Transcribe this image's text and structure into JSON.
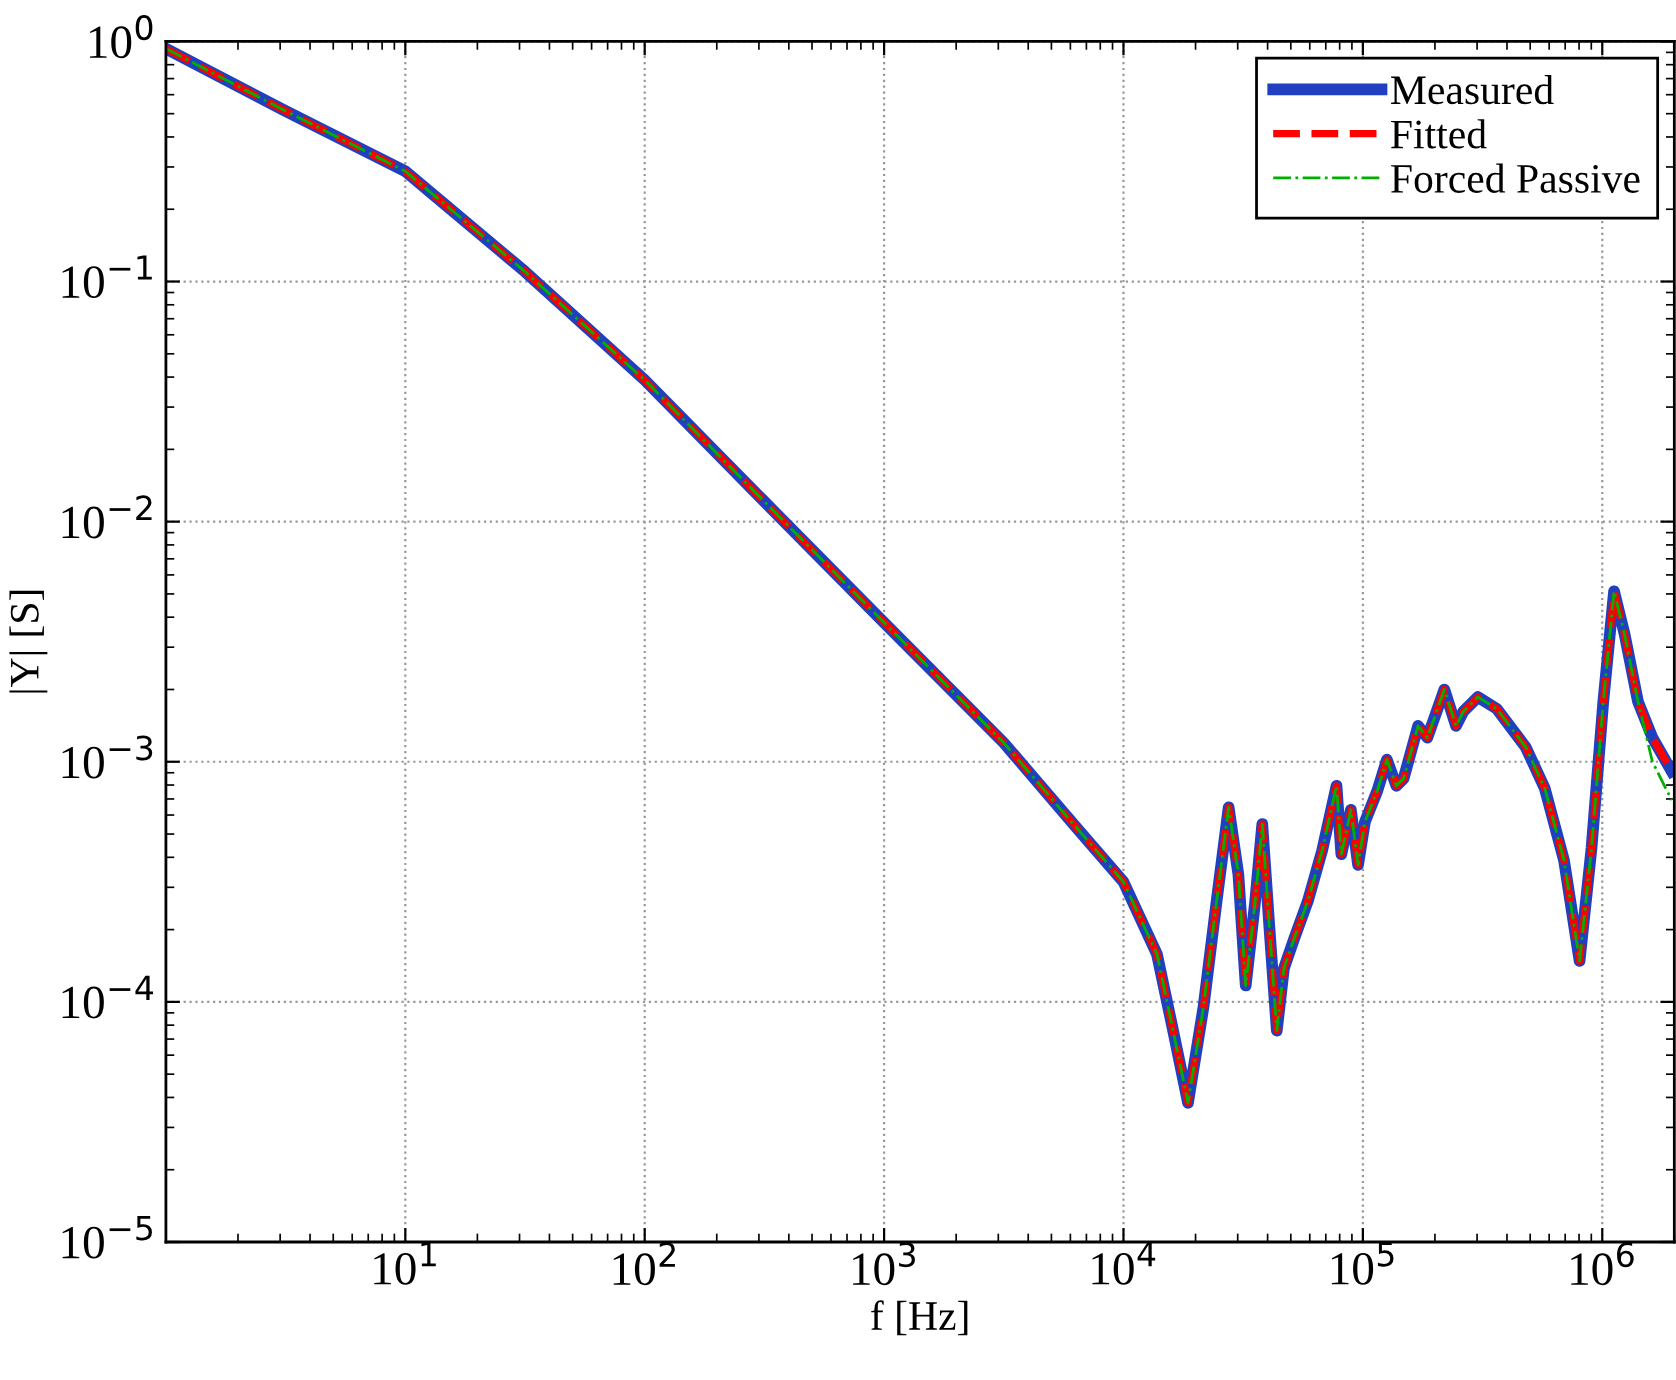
{
  "chart_data": {
    "type": "line",
    "xlabel": "f [Hz]",
    "ylabel": "|Y| [S]",
    "log": "xy",
    "grid": true,
    "legend": "top right",
    "xlim": [
      1,
      2000000
    ],
    "ylim": [
      1e-05,
      1
    ],
    "xticks": [
      {
        "value": 10,
        "label": "10$^{1}$"
      },
      {
        "value": 100,
        "label": "10$^{2}$"
      },
      {
        "value": 1000,
        "label": "10$^{3}$"
      },
      {
        "value": 10000,
        "label": "10$^{4}$"
      },
      {
        "value": 100000,
        "label": "10$^{5}$"
      },
      {
        "value": 1000000,
        "label": "10$^{6}$"
      }
    ],
    "yticks": [
      {
        "value": 1e-05,
        "label": "10$^{−5}$"
      },
      {
        "value": 0.0001,
        "label": "10$^{−4}$"
      },
      {
        "value": 0.001,
        "label": "10$^{−3}$"
      },
      {
        "value": 0.01,
        "label": "10$^{−2}$"
      },
      {
        "value": 0.1,
        "label": "10$^{−1}$"
      },
      {
        "value": 1,
        "label": "10$^{0}$"
      }
    ],
    "x": [
      1,
      3.16,
      10,
      31.6,
      100,
      309,
      1000,
      3160,
      6310,
      10000,
      13800,
      16200,
      18600,
      21600,
      24500,
      27500,
      30200,
      32400,
      35500,
      38000,
      40700,
      43700,
      46800,
      51300,
      58900,
      67600,
      77600,
      81300,
      89100,
      95500,
      102000,
      115000,
      126000,
      138000,
      148000,
      170000,
      186000,
      219000,
      245000,
      263000,
      302000,
      363000,
      479000,
      575000,
      692000,
      804000,
      902000,
      1010000,
      1120000,
      1240000,
      1410000,
      1620000,
      1950000
    ],
    "series": [
      {
        "name": "Measured",
        "color": "#2040c0",
        "line_style": "solid",
        "values": [
          0.933,
          0.513,
          0.288,
          0.11,
          0.0389,
          0.0124,
          0.0038,
          0.0012,
          0.000537,
          0.000316,
          0.000158,
          7.41e-05,
          3.8e-05,
          9.55e-05,
          0.000263,
          0.000646,
          0.000339,
          0.000117,
          0.000263,
          0.00055,
          0.000204,
          7.59e-05,
          0.000138,
          0.00018,
          0.000263,
          0.000427,
          0.000794,
          0.000412,
          0.000631,
          0.000372,
          0.000562,
          0.000759,
          0.00102,
          0.000794,
          0.000851,
          0.00141,
          0.00126,
          0.002,
          0.00141,
          0.00162,
          0.00186,
          0.00166,
          0.00115,
          0.000776,
          0.000389,
          0.000148,
          0.000437,
          0.00178,
          0.00513,
          0.00339,
          0.00178,
          0.00126,
          0.000912
        ]
      },
      {
        "name": "Fitted",
        "color": "#ff0000",
        "line_style": "dashed",
        "values": [
          0.933,
          0.513,
          0.288,
          0.11,
          0.0389,
          0.0124,
          0.0038,
          0.0012,
          0.000537,
          0.000316,
          0.000158,
          7.41e-05,
          3.8e-05,
          9.55e-05,
          0.000263,
          0.000646,
          0.000339,
          0.000117,
          0.000263,
          0.00055,
          0.000204,
          7.59e-05,
          0.000138,
          0.00018,
          0.000263,
          0.000427,
          0.000794,
          0.000412,
          0.000631,
          0.000372,
          0.000562,
          0.000759,
          0.00102,
          0.000794,
          0.000851,
          0.00141,
          0.00126,
          0.002,
          0.00141,
          0.00162,
          0.00186,
          0.00166,
          0.00115,
          0.000776,
          0.000389,
          0.000148,
          0.000437,
          0.00178,
          0.00513,
          0.00339,
          0.00178,
          0.00126,
          0.000912
        ]
      },
      {
        "name": "Forced Passive",
        "color": "#00b000",
        "line_style": "dashdot",
        "values": [
          0.933,
          0.513,
          0.288,
          0.11,
          0.0389,
          0.0124,
          0.0038,
          0.0012,
          0.000537,
          0.000316,
          0.000158,
          7.41e-05,
          3.8e-05,
          9.55e-05,
          0.000263,
          0.000646,
          0.000339,
          0.000117,
          0.000263,
          0.00055,
          0.000204,
          7.59e-05,
          0.000138,
          0.00018,
          0.000263,
          0.000427,
          0.000794,
          0.000412,
          0.000631,
          0.000372,
          0.000562,
          0.000759,
          0.00102,
          0.000794,
          0.000851,
          0.00141,
          0.00126,
          0.002,
          0.00141,
          0.00162,
          0.00186,
          0.00166,
          0.00115,
          0.000776,
          0.000389,
          0.000148,
          0.000437,
          0.00178,
          0.00513,
          0.00339,
          0.00178,
          0.001,
          0.000692
        ]
      }
    ]
  }
}
